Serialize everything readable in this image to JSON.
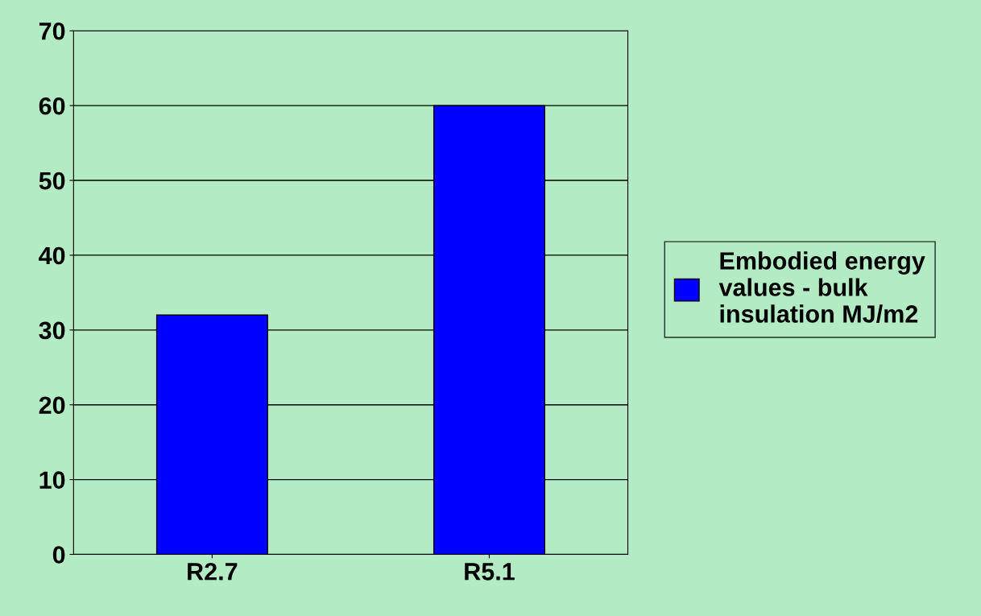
{
  "chart_data": {
    "type": "bar",
    "categories": [
      "R2.7",
      "R5.1"
    ],
    "series": [
      {
        "name": "Embodied energy values - bulk insulation MJ/m2",
        "color": "#0000ff",
        "values": [
          32,
          60
        ]
      }
    ],
    "ylim": [
      0,
      70
    ],
    "yticks": [
      0,
      10,
      20,
      30,
      40,
      50,
      60,
      70
    ],
    "grid": "y",
    "legend": "right"
  }
}
